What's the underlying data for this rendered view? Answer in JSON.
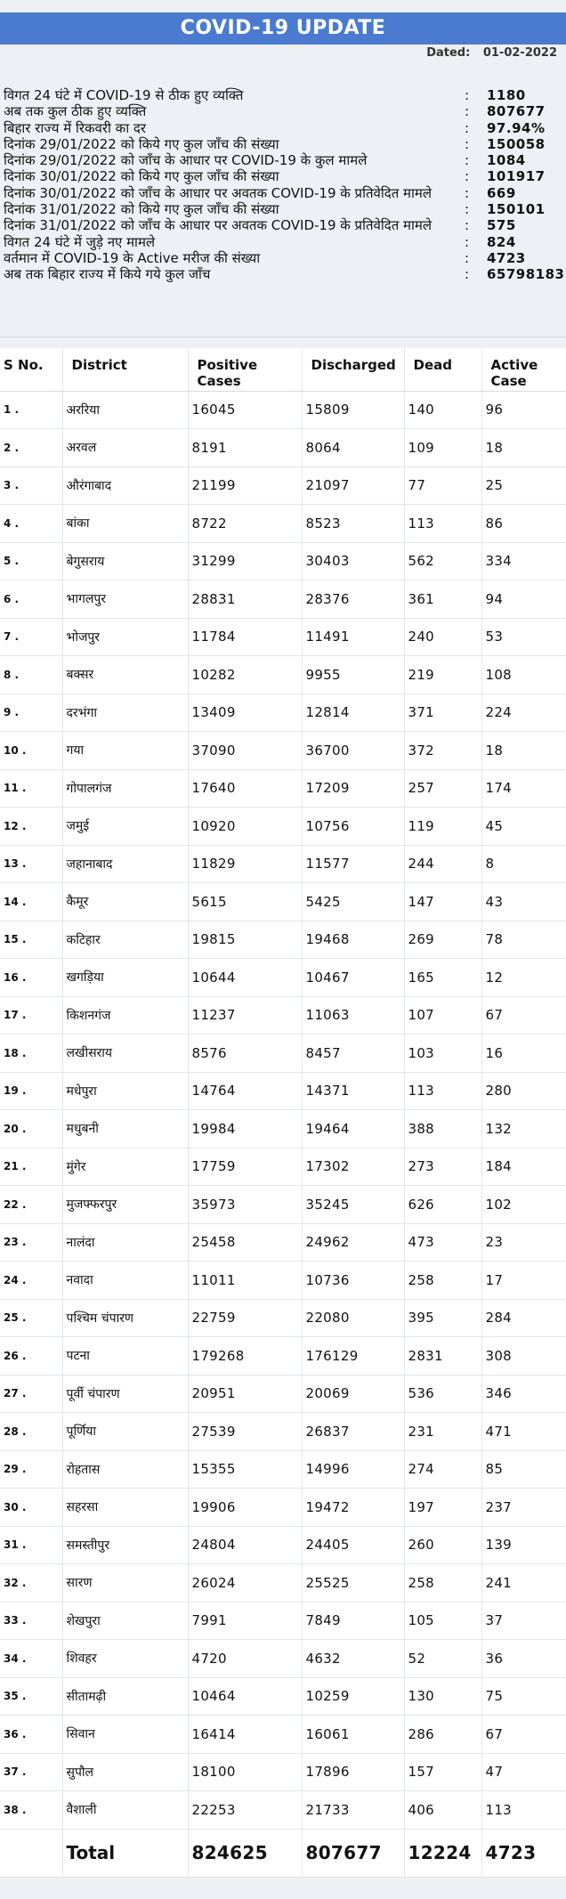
{
  "header": {
    "title": "COVID-19 UPDATE",
    "dated_label": "Dated:",
    "dated_value": "01-02-2022"
  },
  "summary": [
    {
      "label": "विगत 24 घंटे में COVID-19 से ठीक हुए व्यक्ति",
      "value": "1180"
    },
    {
      "label": "अब तक कुल ठीक हुए व्यक्ति",
      "value": "807677"
    },
    {
      "label": "बिहार राज्य में रिकवरी का दर",
      "value": "97.94%"
    },
    {
      "label": "दिनांक 29/01/2022 को किये गए कुल जाँच की संख्या",
      "value": "150058"
    },
    {
      "label": "दिनांक 29/01/2022 को जाँच के आधार पर COVID-19 के कुल मामले",
      "value": "1084"
    },
    {
      "label": "दिनांक 30/01/2022 को किये गए कुल जाँच की संख्या",
      "value": "101917"
    },
    {
      "label": "दिनांक 30/01/2022 को जाँच के आधार पर अवतक COVID-19 के प्रतिवेदित मामले",
      "value": "669"
    },
    {
      "label": "दिनांक 31/01/2022 को किये गए कुल जाँच की संख्या",
      "value": "150101"
    },
    {
      "label": "दिनांक 31/01/2022 को जाँच के आधार पर अवतक COVID-19 के प्रतिवेदित मामले",
      "value": "575"
    },
    {
      "label": "विगत 24 घंटे में जुड़े नए मामले",
      "value": "824"
    },
    {
      "label": "वर्तमान में COVID-19 के Active मरीज की संख्या",
      "value": "4723"
    },
    {
      "label": "अब तक बिहार राज्य में किये गये कुल जाँच",
      "value": "65798183"
    }
  ],
  "table": {
    "headers": [
      "S No.",
      "District",
      "Positive Cases",
      "Discharged",
      "Dead",
      "Active Case"
    ],
    "rows": [
      [
        "1 .",
        "अररिया",
        "16045",
        "15809",
        "140",
        "96"
      ],
      [
        "2 .",
        "अरवल",
        "8191",
        "8064",
        "109",
        "18"
      ],
      [
        "3 .",
        "औरंगाबाद",
        "21199",
        "21097",
        "77",
        "25"
      ],
      [
        "4 .",
        "बांका",
        "8722",
        "8523",
        "113",
        "86"
      ],
      [
        "5 .",
        "बेगुसराय",
        "31299",
        "30403",
        "562",
        "334"
      ],
      [
        "6 .",
        "भागलपुर",
        "28831",
        "28376",
        "361",
        "94"
      ],
      [
        "7 .",
        "भोजपुर",
        "11784",
        "11491",
        "240",
        "53"
      ],
      [
        "8 .",
        "बक्सर",
        "10282",
        "9955",
        "219",
        "108"
      ],
      [
        "9 .",
        "दरभंगा",
        "13409",
        "12814",
        "371",
        "224"
      ],
      [
        "10 .",
        "गया",
        "37090",
        "36700",
        "372",
        "18"
      ],
      [
        "11 .",
        "गोपालगंज",
        "17640",
        "17209",
        "257",
        "174"
      ],
      [
        "12 .",
        "जमुई",
        "10920",
        "10756",
        "119",
        "45"
      ],
      [
        "13 .",
        "जहानाबाद",
        "11829",
        "11577",
        "244",
        "8"
      ],
      [
        "14 .",
        "कैमूर",
        "5615",
        "5425",
        "147",
        "43"
      ],
      [
        "15 .",
        "कटिहार",
        "19815",
        "19468",
        "269",
        "78"
      ],
      [
        "16 .",
        "खगड़िया",
        "10644",
        "10467",
        "165",
        "12"
      ],
      [
        "17 .",
        "किशनगंज",
        "11237",
        "11063",
        "107",
        "67"
      ],
      [
        "18 .",
        "लखीसराय",
        "8576",
        "8457",
        "103",
        "16"
      ],
      [
        "19 .",
        "मधेपुरा",
        "14764",
        "14371",
        "113",
        "280"
      ],
      [
        "20 .",
        "मधुबनी",
        "19984",
        "19464",
        "388",
        "132"
      ],
      [
        "21 .",
        "मुंगेर",
        "17759",
        "17302",
        "273",
        "184"
      ],
      [
        "22 .",
        "मुजफ्फरपुर",
        "35973",
        "35245",
        "626",
        "102"
      ],
      [
        "23 .",
        "नालंदा",
        "25458",
        "24962",
        "473",
        "23"
      ],
      [
        "24 .",
        "नवादा",
        "11011",
        "10736",
        "258",
        "17"
      ],
      [
        "25 .",
        "पश्चिम चंपारण",
        "22759",
        "22080",
        "395",
        "284"
      ],
      [
        "26 .",
        "पटना",
        "179268",
        "176129",
        "2831",
        "308"
      ],
      [
        "27 .",
        "पूर्वी चंपारण",
        "20951",
        "20069",
        "536",
        "346"
      ],
      [
        "28 .",
        "पूर्णिया",
        "27539",
        "26837",
        "231",
        "471"
      ],
      [
        "29 .",
        "रोहतास",
        "15355",
        "14996",
        "274",
        "85"
      ],
      [
        "30 .",
        "सहरसा",
        "19906",
        "19472",
        "197",
        "237"
      ],
      [
        "31 .",
        "समस्तीपुर",
        "24804",
        "24405",
        "260",
        "139"
      ],
      [
        "32 .",
        "सारण",
        "26024",
        "25525",
        "258",
        "241"
      ],
      [
        "33 .",
        "शेखपुरा",
        "7991",
        "7849",
        "105",
        "37"
      ],
      [
        "34 .",
        "शिवहर",
        "4720",
        "4632",
        "52",
        "36"
      ],
      [
        "35 .",
        "सीतामढ़ी",
        "10464",
        "10259",
        "130",
        "75"
      ],
      [
        "36 .",
        "सिवान",
        "16414",
        "16061",
        "286",
        "67"
      ],
      [
        "37 .",
        "सुपौल",
        "18100",
        "17896",
        "157",
        "47"
      ],
      [
        "38 .",
        "वैशाली",
        "22253",
        "21733",
        "406",
        "113"
      ]
    ],
    "total": [
      "",
      "Total",
      "824625",
      "807677",
      "12224",
      "4723"
    ]
  }
}
